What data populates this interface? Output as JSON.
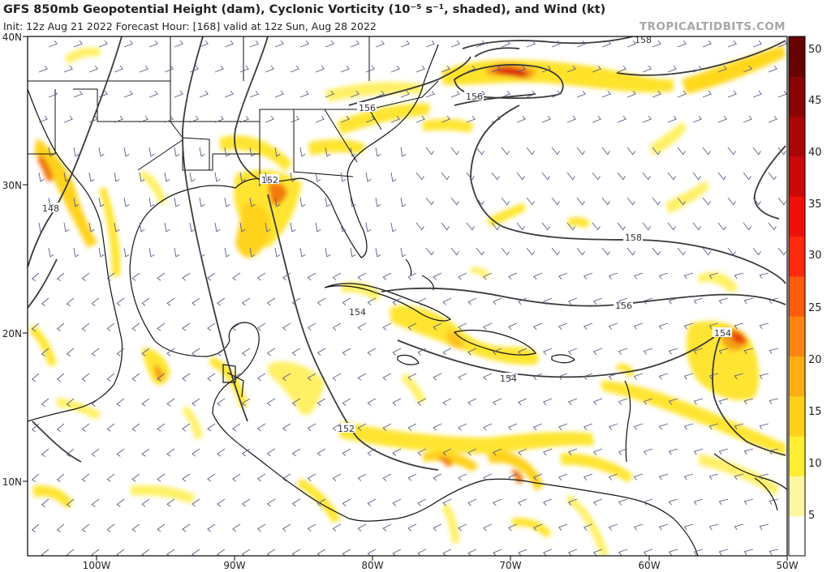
{
  "title": "GFS 850mb Geopotential Height (dam), Cyclonic Vorticity (10⁻⁵ s⁻¹, shaded), and Wind (kt)",
  "subtitle": "Init: 12z Aug 21 2022   Forecast Hour: [168]   valid at 12z Sun, Aug 28 2022",
  "credit": "TROPICALTIDBITS.COM",
  "colorbar": {
    "labels": [
      "50",
      "45",
      "40",
      "35",
      "30",
      "25",
      "20",
      "15",
      "10",
      "5"
    ],
    "colors": [
      "#ffffff",
      "#fff7a0",
      "#ffee33",
      "#ffd21a",
      "#ffae12",
      "#ff8510",
      "#ff5a0e",
      "#ff2a0a",
      "#f0100a",
      "#cc0808",
      "#aa0606",
      "#880505",
      "#660404"
    ]
  },
  "axes": {
    "lon_labels": [
      "100W",
      "90W",
      "80W",
      "70W",
      "60W",
      "50W"
    ],
    "lat_labels": [
      "40N",
      "30N",
      "20N",
      "10N"
    ]
  },
  "contours": [
    {
      "label": "158"
    },
    {
      "label": "156"
    },
    {
      "label": "156"
    },
    {
      "label": "152"
    },
    {
      "label": "148"
    },
    {
      "label": "158"
    },
    {
      "label": "156"
    },
    {
      "label": "154"
    },
    {
      "label": "154"
    },
    {
      "label": "154"
    },
    {
      "label": "152"
    }
  ]
}
